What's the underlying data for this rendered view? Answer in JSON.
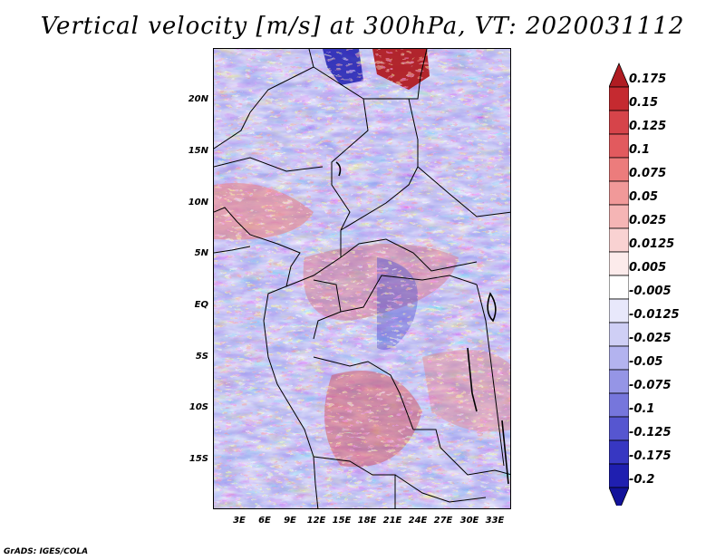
{
  "title": "Vertical velocity [m/s] at 300hPa, VT: 2020031112",
  "footer": "GrADS: IGES/COLA",
  "map": {
    "variable": "Vertical velocity",
    "units": "m/s",
    "level": "300hPa",
    "valid_time": "2020031112",
    "lat_labels": [
      "20N",
      "15N",
      "10N",
      "5N",
      "EQ",
      "5S",
      "10S",
      "15S"
    ],
    "lon_labels": [
      "3E",
      "6E",
      "9E",
      "12E",
      "15E",
      "18E",
      "21E",
      "24E",
      "27E",
      "30E",
      "33E"
    ]
  },
  "colorbar": {
    "labels": [
      "0.175",
      "0.15",
      "0.125",
      "0.1",
      "0.075",
      "0.05",
      "0.025",
      "0.0125",
      "0.005",
      "-0.005",
      "-0.0125",
      "-0.025",
      "-0.05",
      "-0.075",
      "-0.1",
      "-0.125",
      "-0.175",
      "-0.2"
    ],
    "colors": [
      "#b01c22",
      "#c52a30",
      "#d6444a",
      "#e25a5e",
      "#ec7c7c",
      "#f19999",
      "#f5b5b5",
      "#f9d2d2",
      "#fcebeb",
      "#ffffff",
      "#e8e8fb",
      "#cfcff5",
      "#b3b3ef",
      "#9595e6",
      "#7676dc",
      "#5656d0",
      "#3737c2",
      "#1f1fb0",
      "#12129a"
    ]
  }
}
